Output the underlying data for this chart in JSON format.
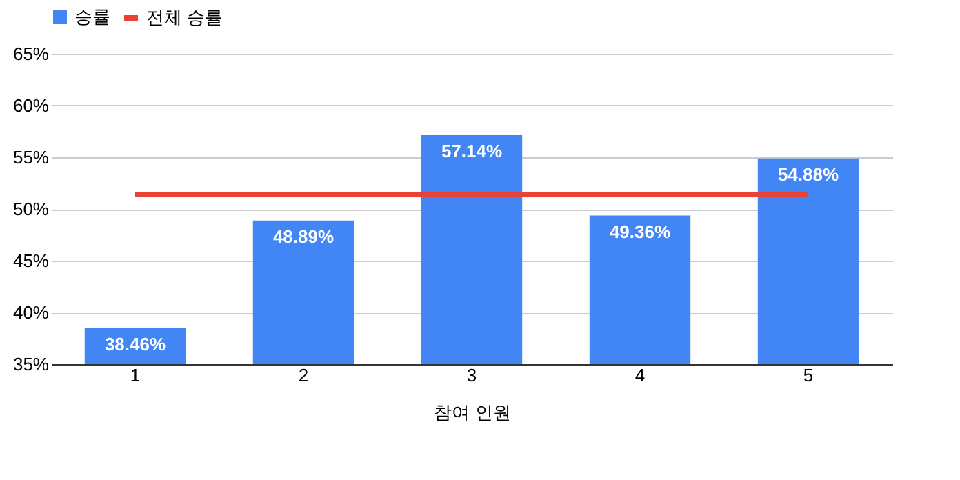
{
  "chart_data": {
    "type": "bar",
    "xlabel": "참여 인원",
    "categories": [
      "1",
      "2",
      "3",
      "4",
      "5"
    ],
    "series": [
      {
        "name": "승률",
        "color": "#4285f4",
        "values": [
          38.46,
          48.89,
          57.14,
          49.36,
          54.88
        ],
        "value_labels": [
          "38.46%",
          "48.89%",
          "57.14%",
          "49.36%",
          "54.88%"
        ]
      },
      {
        "name": "전체 승률",
        "type": "line",
        "color": "#ea4335",
        "values": [
          51.4,
          51.4,
          51.4,
          51.4,
          51.4
        ]
      }
    ],
    "ylim": [
      35,
      65
    ],
    "yticks": [
      {
        "value": 35,
        "label": "35%"
      },
      {
        "value": 40,
        "label": "40%"
      },
      {
        "value": 45,
        "label": "45%"
      },
      {
        "value": 50,
        "label": "50%"
      },
      {
        "value": 55,
        "label": "55%"
      },
      {
        "value": 60,
        "label": "60%"
      },
      {
        "value": 65,
        "label": "65%"
      }
    ],
    "grid": "y",
    "legend": "top"
  }
}
